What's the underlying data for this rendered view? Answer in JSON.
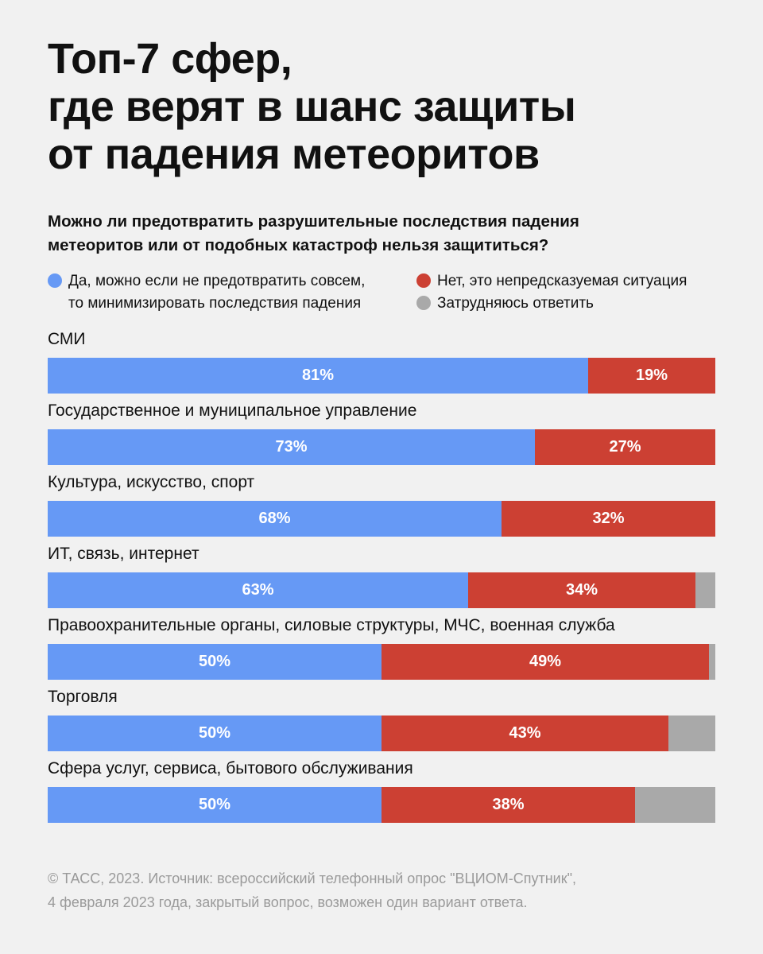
{
  "title_lines": [
    "Топ-7 сфер,",
    "где верят в шанс защиты",
    "от падения метеоритов"
  ],
  "question_lines": [
    "Можно ли предотвратить разрушительные последствия падения",
    "метеоритов или от подобных катастроф нельзя защититься?"
  ],
  "colors": {
    "yes": "#6699f5",
    "no": "#cc4033",
    "dk": "#a9a9a9"
  },
  "legend": {
    "yes_lines": [
      "Да, можно если не предотвратить совсем,",
      "то минимизировать последствия падения"
    ],
    "no": "Нет, это непредсказуемая ситуация",
    "dk": "Затрудняюсь ответить"
  },
  "footer_lines": [
    "© ТАСС, 2023. Источник: всероссийский телефонный опрос \"ВЦИОМ-Спутник\",",
    "4 февраля 2023 года, закрытый вопрос, возможен один вариант ответа."
  ],
  "chart_data": {
    "type": "bar",
    "orientation": "horizontal",
    "stacked": true,
    "xlim": [
      0,
      100
    ],
    "categories": [
      "СМИ",
      "Государственное и муниципальное управление",
      "Культура, искусство, спорт",
      "ИТ, связь, интернет",
      "Правоохранительные органы, силовые структуры, МЧС, военная служба",
      "Торговля",
      "Сфера услуг, сервиса, бытового обслуживания"
    ],
    "series": [
      {
        "key": "yes",
        "values": [
          81,
          73,
          68,
          63,
          50,
          50,
          50
        ],
        "labels": [
          "81%",
          "73%",
          "68%",
          "63%",
          "50%",
          "50%",
          "50%"
        ]
      },
      {
        "key": "no",
        "values": [
          19,
          27,
          32,
          34,
          49,
          43,
          38
        ],
        "labels": [
          "19%",
          "27%",
          "32%",
          "34%",
          "49%",
          "43%",
          "38%"
        ]
      },
      {
        "key": "dk",
        "values": [
          0,
          0,
          0,
          3,
          1,
          7,
          12
        ],
        "labels": [
          "",
          "",
          "",
          "",
          "",
          "",
          ""
        ]
      }
    ]
  }
}
